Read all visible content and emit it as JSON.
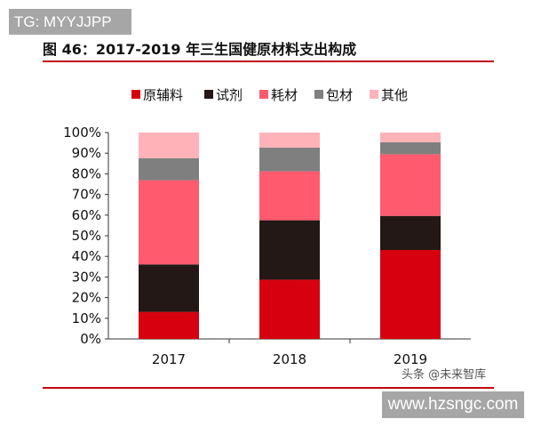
{
  "watermark_top": "TG: MYYJJPP",
  "watermark_bottom": "www.hzsngc.com",
  "source_mark": "头条 @未来智库",
  "chart_data": {
    "type": "bar",
    "stacked": true,
    "title": "图 46：2017-2019 年三生国健原材料支出构成",
    "categories": [
      "2017",
      "2018",
      "2019"
    ],
    "series": [
      {
        "name": "原辅料",
        "color": "#d7000f",
        "values": [
          13.1,
          28.7,
          43.1
        ]
      },
      {
        "name": "试剂",
        "color": "#231815",
        "values": [
          23.0,
          28.8,
          16.5
        ]
      },
      {
        "name": "耗材",
        "color": "#ff5a6e",
        "values": [
          40.8,
          23.7,
          29.9
        ]
      },
      {
        "name": "包材",
        "color": "#7f7f7f",
        "values": [
          10.7,
          11.5,
          5.8
        ]
      },
      {
        "name": "其他",
        "color": "#ffb3b8",
        "values": [
          12.4,
          7.3,
          4.7
        ]
      }
    ],
    "ylim": [
      0,
      100
    ],
    "yticks": [
      "0%",
      "10%",
      "20%",
      "30%",
      "40%",
      "50%",
      "60%",
      "70%",
      "80%",
      "90%",
      "100%"
    ],
    "legend": "top",
    "grid": false
  }
}
